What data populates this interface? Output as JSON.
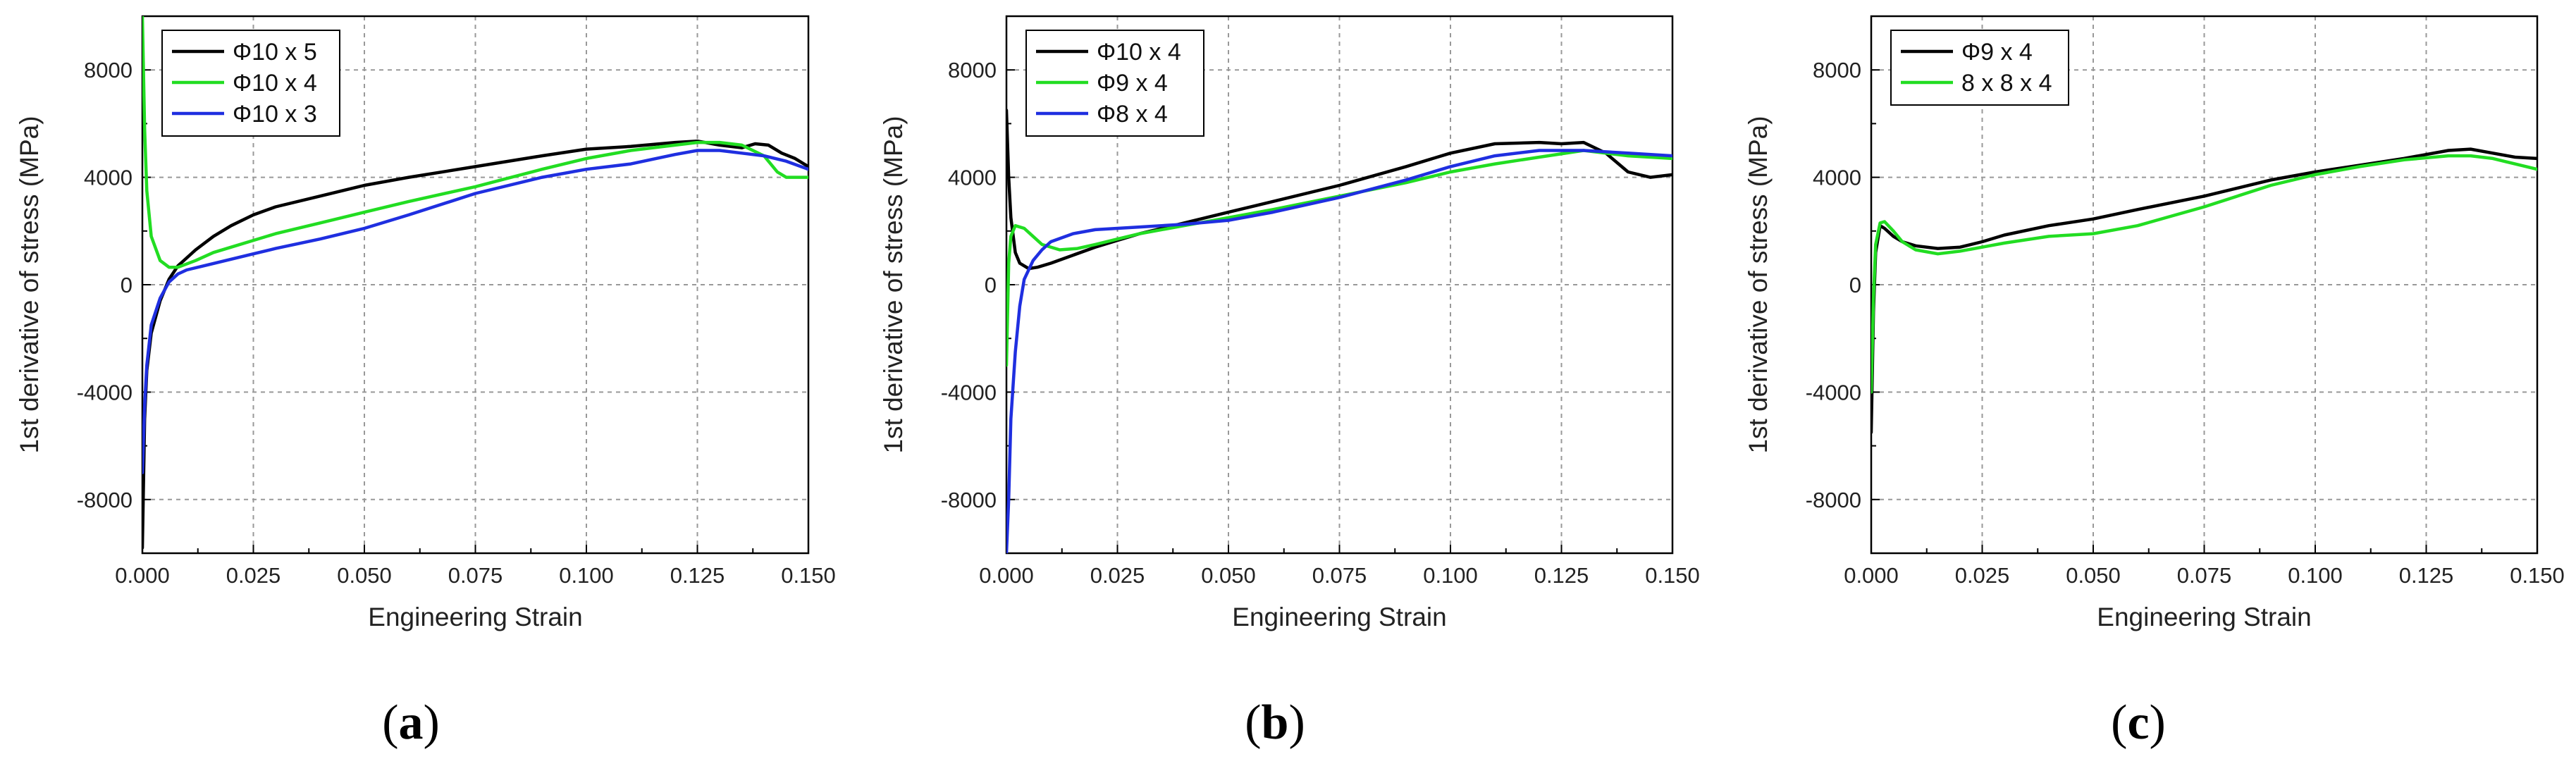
{
  "figure": {
    "panel_labels": [
      "(a)",
      "(b)",
      "(c)"
    ]
  },
  "chart_data": [
    {
      "type": "line",
      "panel": "(a)",
      "title": "",
      "xlabel": "Engineering Strain",
      "ylabel": "1st derivative of stress (MPa)",
      "xlim": [
        0,
        0.15
      ],
      "ylim": [
        -10000,
        10000
      ],
      "xticks": [
        0,
        0.025,
        0.05,
        0.075,
        0.1,
        0.125,
        0.15
      ],
      "xtick_labels": [
        "0.000",
        "0.025",
        "0.050",
        "0.075",
        "0.100",
        "0.125",
        "0.150"
      ],
      "yticks": [
        -8000,
        -4000,
        0,
        4000,
        8000
      ],
      "ytick_labels": [
        "-8000",
        "-4000",
        "0",
        "4000",
        "8000"
      ],
      "grid": true,
      "legend_position": "top-left",
      "series": [
        {
          "name": "Φ10 x 5",
          "color": "#000000",
          "x": [
            0,
            0.0005,
            0.001,
            0.002,
            0.004,
            0.006,
            0.008,
            0.012,
            0.016,
            0.02,
            0.025,
            0.03,
            0.04,
            0.05,
            0.06,
            0.075,
            0.09,
            0.1,
            0.11,
            0.12,
            0.125,
            0.13,
            0.135,
            0.138,
            0.141,
            0.144,
            0.147,
            0.15
          ],
          "values": [
            -9800,
            -5000,
            -3200,
            -1800,
            -600,
            200,
            700,
            1300,
            1800,
            2200,
            2600,
            2900,
            3300,
            3700,
            4000,
            4400,
            4800,
            5050,
            5150,
            5300,
            5350,
            5200,
            5100,
            5250,
            5200,
            4900,
            4700,
            4400
          ]
        },
        {
          "name": "Φ10 x 4",
          "color": "#22dd22",
          "x": [
            0,
            0.0005,
            0.001,
            0.002,
            0.004,
            0.006,
            0.008,
            0.012,
            0.016,
            0.02,
            0.025,
            0.03,
            0.04,
            0.05,
            0.06,
            0.075,
            0.09,
            0.1,
            0.11,
            0.12,
            0.125,
            0.13,
            0.135,
            0.14,
            0.143,
            0.145,
            0.148,
            0.15
          ],
          "values": [
            10000,
            5800,
            3500,
            1800,
            900,
            650,
            650,
            900,
            1200,
            1400,
            1650,
            1900,
            2300,
            2700,
            3100,
            3650,
            4300,
            4700,
            5000,
            5200,
            5300,
            5300,
            5200,
            4800,
            4200,
            4000,
            4000,
            4000
          ]
        },
        {
          "name": "Φ10 x 3",
          "color": "#1f2fe0",
          "x": [
            0,
            0.0005,
            0.001,
            0.002,
            0.004,
            0.006,
            0.008,
            0.01,
            0.015,
            0.02,
            0.025,
            0.03,
            0.04,
            0.05,
            0.06,
            0.075,
            0.09,
            0.1,
            0.11,
            0.12,
            0.125,
            0.13,
            0.135,
            0.14,
            0.145,
            0.15
          ],
          "values": [
            -7000,
            -4500,
            -3000,
            -1500,
            -500,
            100,
            400,
            550,
            750,
            950,
            1150,
            1350,
            1700,
            2100,
            2600,
            3400,
            4000,
            4300,
            4500,
            4850,
            5000,
            5000,
            4900,
            4800,
            4600,
            4300
          ]
        }
      ]
    },
    {
      "type": "line",
      "panel": "(b)",
      "title": "",
      "xlabel": "Engineering Strain",
      "ylabel": "1st derivative of stress (MPa)",
      "xlim": [
        0,
        0.15
      ],
      "ylim": [
        -10000,
        10000
      ],
      "xticks": [
        0,
        0.025,
        0.05,
        0.075,
        0.1,
        0.125,
        0.15
      ],
      "xtick_labels": [
        "0.000",
        "0.025",
        "0.050",
        "0.075",
        "0.100",
        "0.125",
        "0.150"
      ],
      "yticks": [
        -8000,
        -4000,
        0,
        4000,
        8000
      ],
      "ytick_labels": [
        "-8000",
        "-4000",
        "0",
        "4000",
        "8000"
      ],
      "grid": true,
      "legend_position": "top-left",
      "series": [
        {
          "name": "Φ10 x 4",
          "color": "#000000",
          "x": [
            0,
            0.0005,
            0.001,
            0.002,
            0.003,
            0.005,
            0.007,
            0.01,
            0.015,
            0.02,
            0.025,
            0.03,
            0.04,
            0.05,
            0.06,
            0.075,
            0.09,
            0.1,
            0.11,
            0.12,
            0.125,
            0.13,
            0.135,
            0.14,
            0.145,
            0.15
          ],
          "values": [
            6500,
            4000,
            2500,
            1200,
            800,
            600,
            650,
            800,
            1100,
            1400,
            1650,
            1900,
            2300,
            2700,
            3100,
            3700,
            4400,
            4900,
            5250,
            5300,
            5250,
            5300,
            4900,
            4200,
            4000,
            4100
          ]
        },
        {
          "name": "Φ9 x 4",
          "color": "#22dd22",
          "x": [
            0,
            0.0005,
            0.001,
            0.002,
            0.004,
            0.006,
            0.008,
            0.012,
            0.016,
            0.02,
            0.025,
            0.03,
            0.04,
            0.05,
            0.06,
            0.075,
            0.09,
            0.1,
            0.11,
            0.12,
            0.13,
            0.14,
            0.15
          ],
          "values": [
            -3000,
            800,
            1800,
            2200,
            2100,
            1800,
            1500,
            1300,
            1350,
            1500,
            1700,
            1900,
            2200,
            2500,
            2800,
            3300,
            3800,
            4200,
            4500,
            4750,
            5000,
            4800,
            4700
          ]
        },
        {
          "name": "Φ8 x 4",
          "color": "#1f2fe0",
          "x": [
            0,
            0.0005,
            0.001,
            0.002,
            0.003,
            0.004,
            0.006,
            0.008,
            0.01,
            0.015,
            0.02,
            0.03,
            0.04,
            0.05,
            0.06,
            0.075,
            0.09,
            0.1,
            0.11,
            0.12,
            0.13,
            0.14,
            0.15
          ],
          "values": [
            -10000,
            -8000,
            -5000,
            -2500,
            -800,
            200,
            900,
            1300,
            1600,
            1900,
            2050,
            2150,
            2250,
            2400,
            2700,
            3250,
            3900,
            4400,
            4800,
            5000,
            5000,
            4900,
            4800
          ]
        }
      ]
    },
    {
      "type": "line",
      "panel": "(c)",
      "title": "",
      "xlabel": "Engineering Strain",
      "ylabel": "1st derivative of stress (MPa)",
      "xlim": [
        0,
        0.15
      ],
      "ylim": [
        -10000,
        10000
      ],
      "xticks": [
        0,
        0.025,
        0.05,
        0.075,
        0.1,
        0.125,
        0.15
      ],
      "xtick_labels": [
        "0.000",
        "0.025",
        "0.050",
        "0.075",
        "0.100",
        "0.125",
        "0.150"
      ],
      "yticks": [
        -8000,
        -4000,
        0,
        4000,
        8000
      ],
      "ytick_labels": [
        "-8000",
        "-4000",
        "0",
        "4000",
        "8000"
      ],
      "grid": true,
      "legend_position": "top-left",
      "series": [
        {
          "name": "Φ9 x 4",
          "color": "#000000",
          "x": [
            0,
            0.0005,
            0.001,
            0.002,
            0.003,
            0.005,
            0.007,
            0.01,
            0.015,
            0.02,
            0.025,
            0.03,
            0.04,
            0.05,
            0.06,
            0.075,
            0.09,
            0.1,
            0.11,
            0.12,
            0.13,
            0.135,
            0.14,
            0.145,
            0.15
          ],
          "values": [
            -5500,
            -1000,
            1200,
            2200,
            2100,
            1800,
            1600,
            1450,
            1350,
            1400,
            1600,
            1850,
            2200,
            2450,
            2800,
            3300,
            3900,
            4200,
            4450,
            4700,
            5000,
            5050,
            4900,
            4750,
            4700
          ]
        },
        {
          "name": "8 x 8 x 4",
          "color": "#22dd22",
          "x": [
            0,
            0.0005,
            0.001,
            0.002,
            0.003,
            0.005,
            0.007,
            0.01,
            0.015,
            0.02,
            0.025,
            0.03,
            0.04,
            0.05,
            0.06,
            0.075,
            0.09,
            0.1,
            0.11,
            0.12,
            0.13,
            0.135,
            0.14,
            0.145,
            0.15
          ],
          "values": [
            -4000,
            -500,
            1500,
            2300,
            2350,
            2000,
            1600,
            1300,
            1150,
            1250,
            1400,
            1550,
            1800,
            1900,
            2200,
            2900,
            3700,
            4100,
            4400,
            4650,
            4800,
            4800,
            4700,
            4500,
            4300
          ]
        }
      ]
    }
  ]
}
